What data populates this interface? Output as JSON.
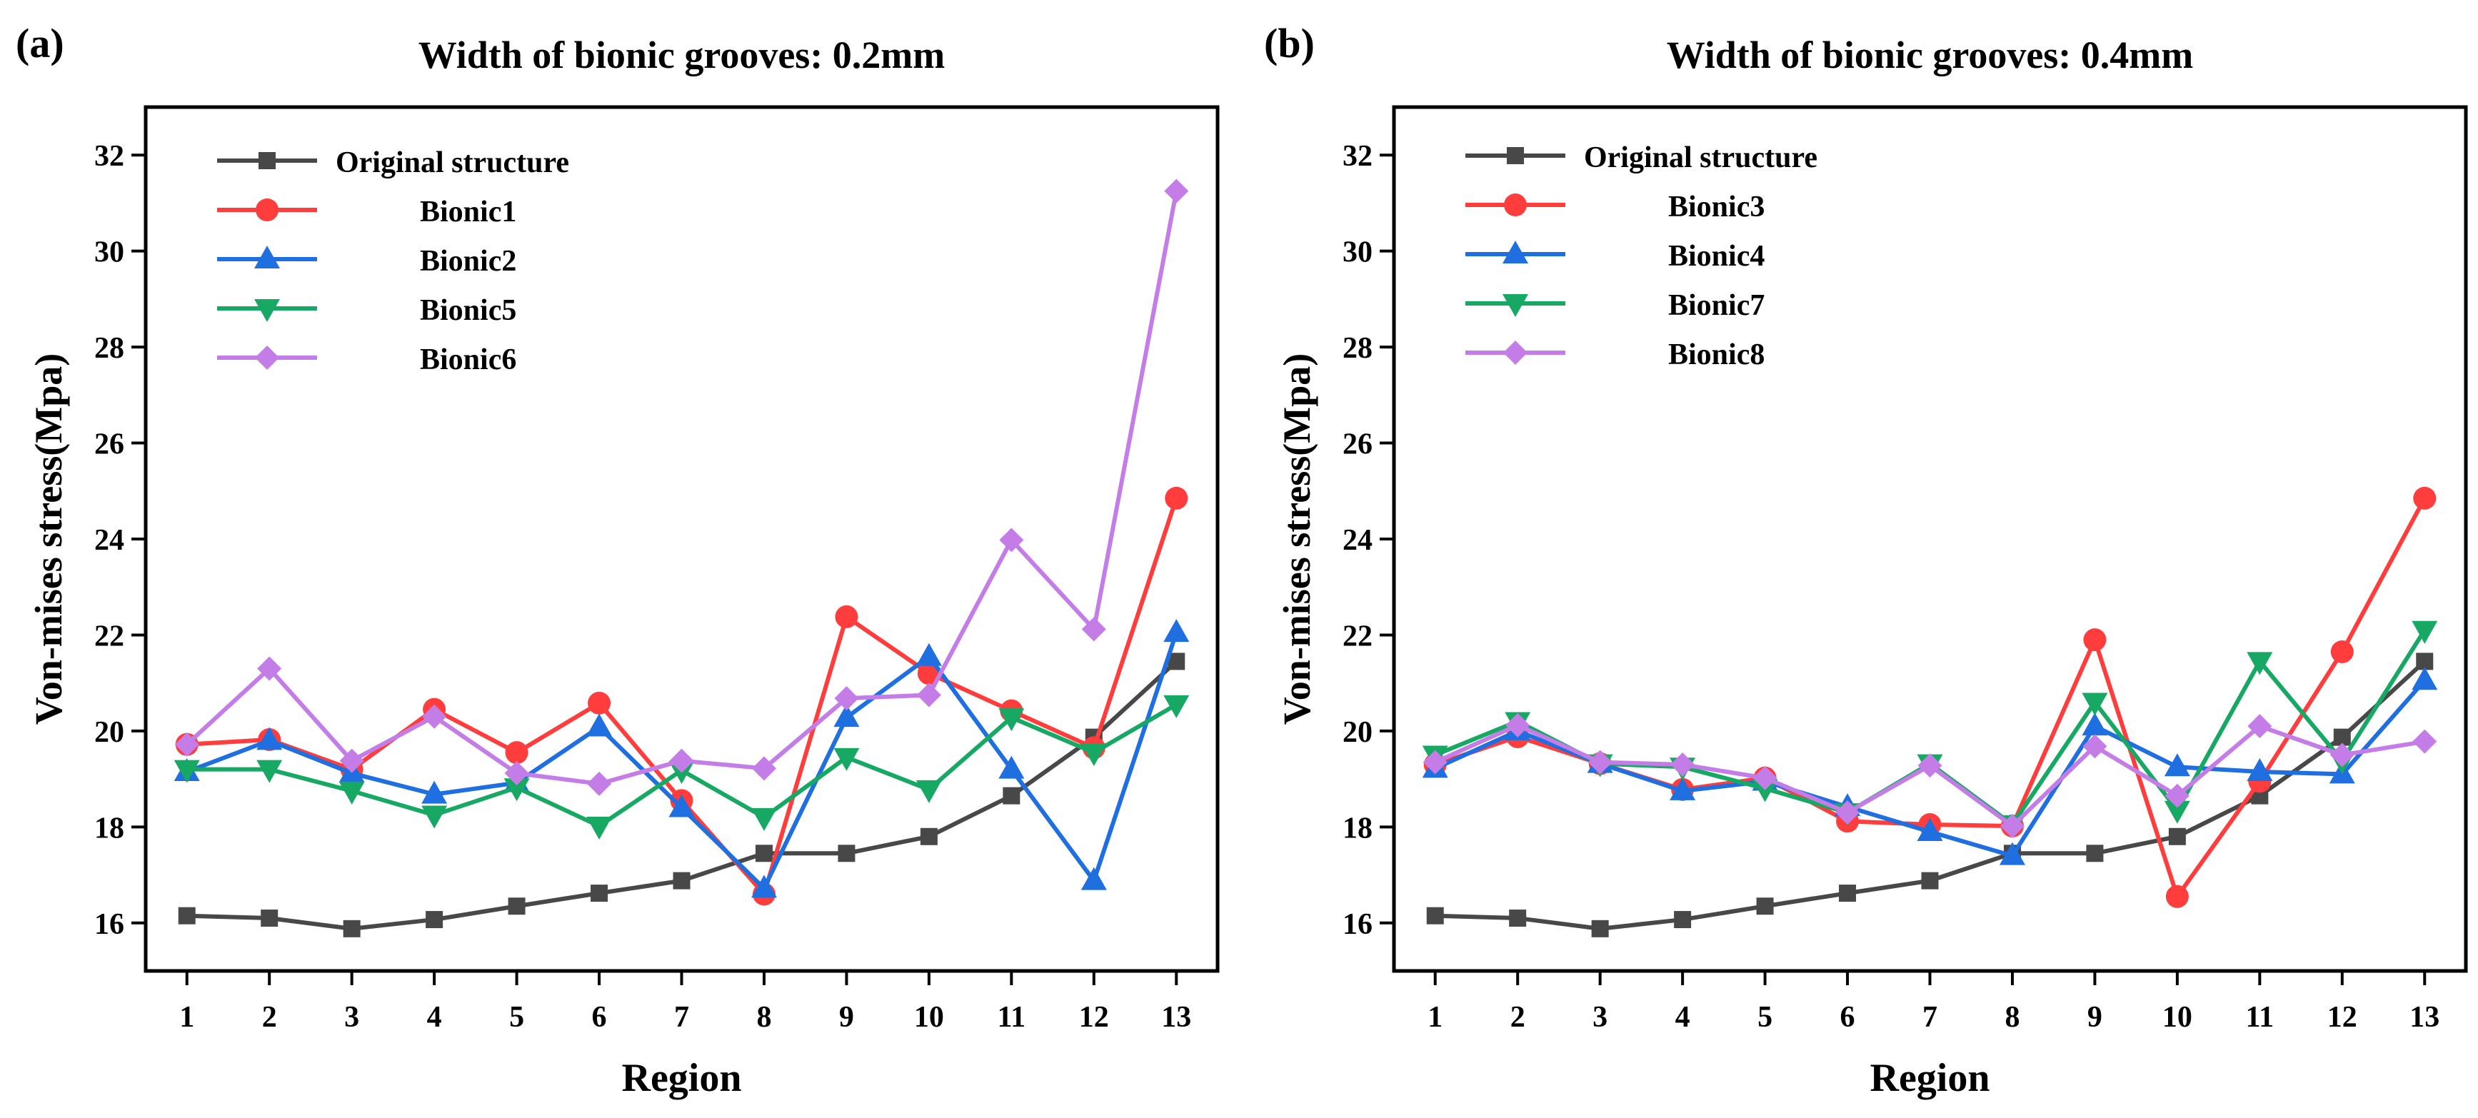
{
  "chart_data": [
    {
      "type": "line",
      "panel_label": "(a)",
      "title": "Width of bionic grooves: 0.2mm",
      "xlabel": "Region",
      "ylabel": "Von-mises stress(Mpa)",
      "xlim": [
        0.5,
        13.5
      ],
      "ylim": [
        15,
        33
      ],
      "yticks": [
        16,
        18,
        20,
        22,
        24,
        26,
        28,
        30,
        32
      ],
      "categories": [
        "1",
        "2",
        "3",
        "4",
        "5",
        "6",
        "7",
        "8",
        "9",
        "10",
        "11",
        "12",
        "13"
      ],
      "legend_position": "top-left",
      "series": [
        {
          "name": "Original structure",
          "color": "#484848",
          "marker": "square",
          "values": [
            16.15,
            16.1,
            15.88,
            16.07,
            16.35,
            16.62,
            16.88,
            17.45,
            17.45,
            17.8,
            18.65,
            19.87,
            21.45
          ]
        },
        {
          "name": "Bionic1",
          "color": "#ff3d3d",
          "marker": "circle",
          "values": [
            19.72,
            19.82,
            19.2,
            20.45,
            19.55,
            20.58,
            18.55,
            16.6,
            22.38,
            21.2,
            20.42,
            19.65,
            24.85
          ]
        },
        {
          "name": "Bionic2",
          "color": "#1f6fe0",
          "marker": "triangle-up",
          "values": [
            19.15,
            19.8,
            19.12,
            18.68,
            18.92,
            20.08,
            18.4,
            16.72,
            20.28,
            21.55,
            19.2,
            16.88,
            22.05
          ]
        },
        {
          "name": "Bionic5",
          "color": "#17a864",
          "marker": "triangle-down",
          "values": [
            19.2,
            19.2,
            18.75,
            18.25,
            18.82,
            18.02,
            19.18,
            18.2,
            19.45,
            18.78,
            20.28,
            19.55,
            20.55
          ]
        },
        {
          "name": "Bionic6",
          "color": "#c47de6",
          "marker": "diamond",
          "values": [
            19.72,
            21.3,
            19.38,
            20.3,
            19.12,
            18.9,
            19.38,
            19.22,
            20.68,
            20.75,
            23.98,
            22.12,
            31.25
          ]
        }
      ]
    },
    {
      "type": "line",
      "panel_label": "(b)",
      "title": "Width of bionic grooves: 0.4mm",
      "xlabel": "Region",
      "ylabel": "Von-mises stress(Mpa)",
      "xlim": [
        0.5,
        13.5
      ],
      "ylim": [
        15,
        33
      ],
      "yticks": [
        16,
        18,
        20,
        22,
        24,
        26,
        28,
        30,
        32
      ],
      "categories": [
        "1",
        "2",
        "3",
        "4",
        "5",
        "6",
        "7",
        "8",
        "9",
        "10",
        "11",
        "12",
        "13"
      ],
      "legend_position": "top-left",
      "series": [
        {
          "name": "Original structure",
          "color": "#484848",
          "marker": "square",
          "values": [
            16.15,
            16.1,
            15.88,
            16.07,
            16.35,
            16.62,
            16.88,
            17.45,
            17.45,
            17.8,
            18.65,
            19.87,
            21.45
          ]
        },
        {
          "name": "Bionic3",
          "color": "#ff3d3d",
          "marker": "circle",
          "values": [
            19.3,
            19.88,
            19.32,
            18.78,
            19.02,
            18.12,
            18.05,
            18.02,
            21.9,
            16.55,
            18.95,
            21.65,
            24.85
          ]
        },
        {
          "name": "Bionic4",
          "color": "#1f6fe0",
          "marker": "triangle-up",
          "values": [
            19.22,
            20.0,
            19.32,
            18.75,
            18.95,
            18.42,
            17.9,
            17.4,
            20.1,
            19.25,
            19.15,
            19.1,
            21.05
          ]
        },
        {
          "name": "Bionic7",
          "color": "#17a864",
          "marker": "triangle-down",
          "values": [
            19.5,
            20.2,
            19.32,
            19.25,
            18.8,
            18.3,
            19.32,
            18.05,
            20.6,
            18.35,
            21.45,
            19.38,
            22.1
          ]
        },
        {
          "name": "Bionic8",
          "color": "#c47de6",
          "marker": "diamond",
          "values": [
            19.35,
            20.12,
            19.35,
            19.3,
            19.02,
            18.3,
            19.28,
            18.02,
            19.68,
            18.65,
            20.1,
            19.5,
            19.78
          ]
        }
      ]
    }
  ]
}
